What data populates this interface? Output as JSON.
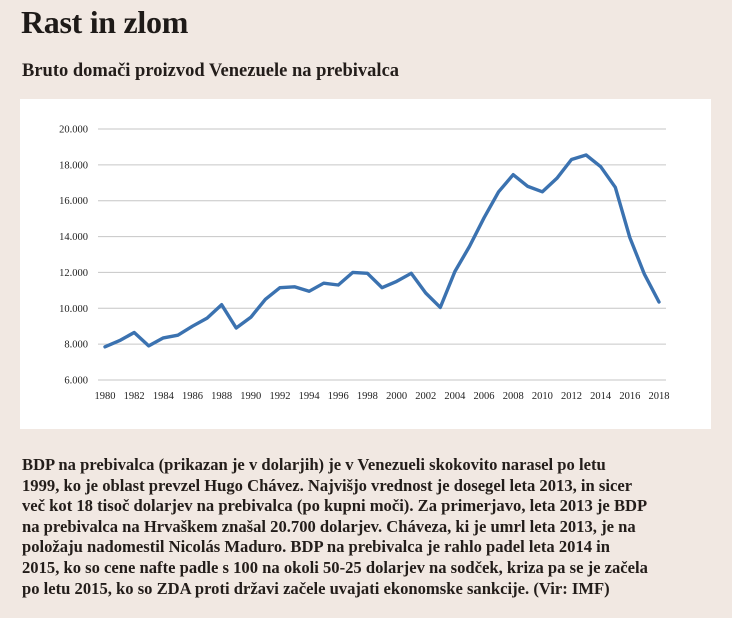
{
  "header": {
    "title": "Rast in zlom",
    "subtitle": "Bruto domači proizvod Venezuele na prebivalca"
  },
  "colors": {
    "background": "#f1e8e2",
    "panel": "#ffffff",
    "line": "#3b72b0",
    "grid": "#c6c6c6"
  },
  "chart_data": {
    "type": "line",
    "title": "Bruto domači proizvod Venezuele na prebivalca",
    "xlabel": "",
    "ylabel": "",
    "ylim": [
      6000,
      20000
    ],
    "xlim": [
      1980,
      2018
    ],
    "grid": true,
    "legend": "none",
    "yticks": [
      {
        "value": 20000,
        "label": "20.000"
      },
      {
        "value": 18000,
        "label": "18.000"
      },
      {
        "value": 16000,
        "label": "16.000"
      },
      {
        "value": 14000,
        "label": "14.000"
      },
      {
        "value": 12000,
        "label": "12.000"
      },
      {
        "value": 10000,
        "label": "10.000"
      },
      {
        "value": 8000,
        "label": "8.000"
      },
      {
        "value": 6000,
        "label": "6.000"
      }
    ],
    "xticks": [
      "1980",
      "1982",
      "1984",
      "1986",
      "1988",
      "1990",
      "1992",
      "1994",
      "1996",
      "1998",
      "2000",
      "2002",
      "2004",
      "2006",
      "2008",
      "2010",
      "2012",
      "2014",
      "2016",
      "2018"
    ],
    "series": [
      {
        "name": "BDP na prebivalca",
        "x": [
          1980,
          1981,
          1982,
          1983,
          1984,
          1985,
          1986,
          1987,
          1988,
          1989,
          1990,
          1991,
          1992,
          1993,
          1994,
          1995,
          1996,
          1997,
          1998,
          1999,
          2000,
          2001,
          2002,
          2003,
          2004,
          2005,
          2006,
          2007,
          2008,
          2009,
          2010,
          2011,
          2012,
          2013,
          2014,
          2015,
          2016,
          2017,
          2018
        ],
        "values": [
          7850,
          8200,
          8650,
          7900,
          8350,
          8500,
          9000,
          9450,
          10200,
          8900,
          9500,
          10500,
          11150,
          11200,
          10950,
          11400,
          11300,
          12000,
          11950,
          11150,
          11500,
          11950,
          10850,
          10050,
          12050,
          13450,
          15050,
          16500,
          17450,
          16800,
          16500,
          17250,
          18300,
          18550,
          17900,
          16750,
          13950,
          11900,
          10350
        ]
      }
    ]
  },
  "body": {
    "lines": [
      "BDP na prebivalca (prikazan je v dolarjih) je v Venezueli skokovito narasel po letu",
      "1999, ko je oblast prevzel Hugo Chávez. Najvišjo vrednost je dosegel leta 2013, in sicer",
      "več kot 18 tisoč dolarjev na prebivalca (po kupni moči). Za primerjavo, leta 2013 je BDP",
      "na prebivalca na Hrvaškem znašal 20.700 dolarjev. Cháveza, ki je umrl leta 2013, je na",
      "položaju nadomestil Nicolás Maduro. BDP na prebivalca je rahlo padel leta 2014 in",
      "2015, ko so cene nafte padle s 100 na okoli 50-25 dolarjev na sodček, kriza pa se je začela",
      "po letu 2015, ko so ZDA proti državi začele uvajati ekonomske sankcije. (Vir: IMF)"
    ]
  }
}
